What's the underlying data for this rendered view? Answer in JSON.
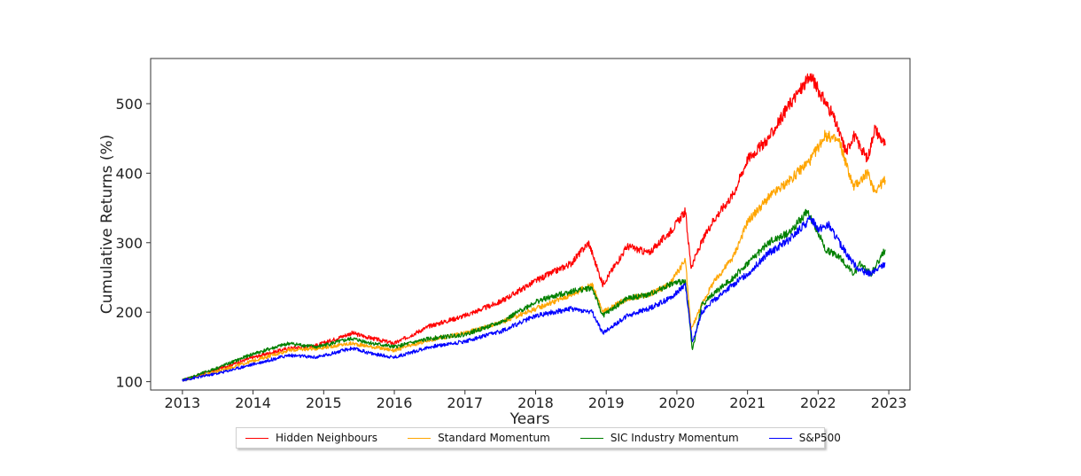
{
  "chart_data": {
    "type": "line",
    "title": "",
    "xlabel": "Years",
    "ylabel": "Cumulative Returns (%)",
    "xlim": [
      2012.55,
      2023.3
    ],
    "ylim": [
      88,
      565
    ],
    "xticks": [
      "2013",
      "2014",
      "2015",
      "2016",
      "2017",
      "2018",
      "2019",
      "2020",
      "2021",
      "2022",
      "2023"
    ],
    "yticks": [
      "100",
      "200",
      "300",
      "400",
      "500"
    ],
    "grid": false,
    "legend_position": "bottom-center",
    "series": [
      {
        "name": "Hidden Neighbours",
        "color": "#ff0000",
        "x": [
          2013.0,
          2013.5,
          2014.0,
          2014.5,
          2014.9,
          2015.4,
          2015.7,
          2016.0,
          2016.5,
          2017.0,
          2017.5,
          2018.0,
          2018.5,
          2018.75,
          2018.95,
          2019.3,
          2019.6,
          2019.9,
          2020.12,
          2020.2,
          2020.35,
          2020.5,
          2020.8,
          2021.0,
          2021.3,
          2021.6,
          2021.9,
          2022.0,
          2022.2,
          2022.4,
          2022.5,
          2022.7,
          2022.8,
          2022.95
        ],
        "values": [
          102,
          118,
          135,
          148,
          152,
          170,
          162,
          155,
          180,
          195,
          215,
          245,
          270,
          300,
          240,
          295,
          285,
          315,
          345,
          265,
          300,
          330,
          370,
          420,
          450,
          500,
          540,
          520,
          485,
          430,
          455,
          420,
          465,
          440
        ]
      },
      {
        "name": "Standard Momentum",
        "color": "#ffa500",
        "x": [
          2013.0,
          2013.5,
          2014.0,
          2014.5,
          2014.9,
          2015.4,
          2015.7,
          2016.0,
          2016.5,
          2017.0,
          2017.5,
          2018.0,
          2018.5,
          2018.8,
          2018.95,
          2019.3,
          2019.6,
          2019.9,
          2020.12,
          2020.2,
          2020.35,
          2020.5,
          2020.8,
          2021.0,
          2021.3,
          2021.6,
          2021.9,
          2022.1,
          2022.3,
          2022.5,
          2022.7,
          2022.8,
          2022.95
        ],
        "values": [
          102,
          115,
          130,
          145,
          148,
          155,
          150,
          145,
          160,
          170,
          185,
          205,
          225,
          240,
          200,
          220,
          225,
          240,
          275,
          175,
          210,
          240,
          280,
          330,
          365,
          390,
          420,
          455,
          445,
          380,
          400,
          375,
          390
        ]
      },
      {
        "name": "SIC Industry Momentum",
        "color": "#008000",
        "x": [
          2013.0,
          2013.5,
          2014.0,
          2014.5,
          2014.9,
          2015.4,
          2015.7,
          2016.0,
          2016.5,
          2017.0,
          2017.5,
          2018.0,
          2018.5,
          2018.8,
          2018.95,
          2019.3,
          2019.6,
          2019.9,
          2020.12,
          2020.22,
          2020.35,
          2020.5,
          2020.8,
          2021.0,
          2021.3,
          2021.6,
          2021.85,
          2022.0,
          2022.1,
          2022.3,
          2022.5,
          2022.6,
          2022.75,
          2022.95
        ],
        "values": [
          102,
          120,
          140,
          155,
          150,
          162,
          155,
          150,
          162,
          168,
          185,
          215,
          230,
          235,
          195,
          220,
          225,
          240,
          245,
          145,
          210,
          225,
          250,
          270,
          300,
          315,
          345,
          315,
          290,
          280,
          255,
          270,
          255,
          290
        ]
      },
      {
        "name": "S&P500",
        "color": "#0000ff",
        "x": [
          2013.0,
          2013.5,
          2014.0,
          2014.5,
          2014.9,
          2015.4,
          2015.7,
          2016.0,
          2016.5,
          2017.0,
          2017.5,
          2018.0,
          2018.5,
          2018.8,
          2018.95,
          2019.3,
          2019.6,
          2019.9,
          2020.12,
          2020.22,
          2020.35,
          2020.5,
          2020.8,
          2021.0,
          2021.3,
          2021.6,
          2021.9,
          2022.0,
          2022.15,
          2022.3,
          2022.5,
          2022.6,
          2022.75,
          2022.95
        ],
        "values": [
          102,
          112,
          125,
          138,
          135,
          148,
          140,
          135,
          150,
          158,
          172,
          195,
          205,
          200,
          170,
          195,
          205,
          220,
          240,
          155,
          200,
          215,
          240,
          255,
          285,
          305,
          335,
          320,
          325,
          300,
          270,
          260,
          255,
          270
        ]
      }
    ]
  }
}
